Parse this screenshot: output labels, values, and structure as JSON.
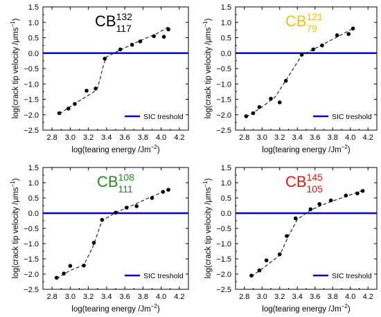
{
  "chart_data": [
    {
      "type": "scatter",
      "title_base": "CB",
      "title_sup": "132",
      "title_sub": "117",
      "title_color": "#000000",
      "xlabel": "log(tearing energy /Jm",
      "xlabel_exp": "−2",
      "xlabel_close": ")",
      "ylabel": "log(crack tip velocity /μms",
      "ylabel_exp": "−1",
      "ylabel_close": ")",
      "xlim": [
        2.7,
        4.3
      ],
      "ylim": [
        -2.5,
        1.5
      ],
      "xticks": [
        "2.8",
        "3.0",
        "3.2",
        "3.4",
        "3.6",
        "3.8",
        "4.0",
        "4.2"
      ],
      "yticks": [
        "−2.5",
        "−2.0",
        "−1.5",
        "−1.0",
        "−0.5",
        "0.0",
        "0.5",
        "1.0",
        "1.5"
      ],
      "legend": {
        "label": "SIC treshold",
        "position": "bottom-right"
      },
      "threshold": {
        "y": 0.0,
        "color": "#0000dd"
      },
      "points": [
        [
          2.88,
          -1.95
        ],
        [
          2.98,
          -1.8
        ],
        [
          3.05,
          -1.65
        ],
        [
          3.18,
          -1.22
        ],
        [
          3.28,
          -1.15
        ],
        [
          3.38,
          -0.18
        ],
        [
          3.55,
          0.12
        ],
        [
          3.68,
          0.27
        ],
        [
          3.77,
          0.38
        ],
        [
          3.92,
          0.55
        ],
        [
          4.03,
          0.53
        ],
        [
          4.08,
          0.77
        ]
      ],
      "fit": [
        [
          2.88,
          -1.97
        ],
        [
          3.1,
          -1.55
        ],
        [
          3.25,
          -1.28
        ],
        [
          3.3,
          -1.15
        ],
        [
          3.37,
          -0.35
        ],
        [
          3.4,
          -0.12
        ],
        [
          3.55,
          0.1
        ],
        [
          3.75,
          0.38
        ],
        [
          3.95,
          0.63
        ],
        [
          4.08,
          0.85
        ]
      ]
    },
    {
      "type": "scatter",
      "title_base": "CB",
      "title_sup": "121",
      "title_sub": "79",
      "title_color": "#f2c400",
      "xlabel": "log(tearing energy /Jm",
      "xlabel_exp": "−2",
      "xlabel_close": ")",
      "ylabel": "log(crack tip velocity /μms",
      "ylabel_exp": "−1",
      "ylabel_close": ")",
      "xlim": [
        2.7,
        4.3
      ],
      "ylim": [
        -2.5,
        1.5
      ],
      "xticks": [
        "2.8",
        "3.0",
        "3.2",
        "3.4",
        "3.6",
        "3.8",
        "4.0",
        "4.2"
      ],
      "yticks": [
        "−2.5",
        "−2.0",
        "−1.5",
        "−1.0",
        "−0.5",
        "0.0",
        "0.5",
        "1.0",
        "1.5"
      ],
      "legend": {
        "label": "SIC treshold",
        "position": "bottom-right"
      },
      "threshold": {
        "y": 0.0,
        "color": "#0000dd"
      },
      "points": [
        [
          2.82,
          -2.05
        ],
        [
          2.9,
          -1.95
        ],
        [
          2.97,
          -1.75
        ],
        [
          3.1,
          -1.48
        ],
        [
          3.2,
          -1.6
        ],
        [
          3.27,
          -0.9
        ],
        [
          3.45,
          -0.05
        ],
        [
          3.58,
          0.12
        ],
        [
          3.68,
          0.25
        ],
        [
          3.85,
          0.58
        ],
        [
          3.98,
          0.62
        ],
        [
          4.03,
          0.8
        ]
      ],
      "fit": [
        [
          2.82,
          -2.08
        ],
        [
          3.0,
          -1.75
        ],
        [
          3.15,
          -1.42
        ],
        [
          3.3,
          -0.75
        ],
        [
          3.45,
          -0.07
        ],
        [
          3.6,
          0.15
        ],
        [
          3.8,
          0.45
        ],
        [
          4.03,
          0.8
        ]
      ]
    },
    {
      "type": "scatter",
      "title_base": "CB",
      "title_sup": "108",
      "title_sub": "111",
      "title_color": "#228b22",
      "xlabel": "log(tearing energy /Jm",
      "xlabel_exp": "−2",
      "xlabel_close": ")",
      "ylabel": "log(crack tip velocity /μms",
      "ylabel_exp": "−1",
      "ylabel_close": ")",
      "xlim": [
        2.7,
        4.3
      ],
      "ylim": [
        -2.5,
        1.5
      ],
      "xticks": [
        "2.8",
        "3.0",
        "3.2",
        "3.4",
        "3.6",
        "3.8",
        "4.0",
        "4.2"
      ],
      "yticks": [
        "−2.5",
        "−2.0",
        "−1.5",
        "−1.0",
        "−0.5",
        "0.0",
        "0.5",
        "1.0",
        "1.5"
      ],
      "legend": {
        "label": "SIC treshold",
        "position": "bottom-right"
      },
      "threshold": {
        "y": 0.0,
        "color": "#0000dd"
      },
      "points": [
        [
          2.85,
          -2.12
        ],
        [
          2.93,
          -1.98
        ],
        [
          3.0,
          -1.73
        ],
        [
          3.15,
          -1.72
        ],
        [
          3.26,
          -0.97
        ],
        [
          3.35,
          -0.22
        ],
        [
          3.5,
          0.02
        ],
        [
          3.62,
          0.18
        ],
        [
          3.73,
          0.23
        ],
        [
          3.9,
          0.5
        ],
        [
          4.02,
          0.7
        ],
        [
          4.08,
          0.77
        ]
      ],
      "fit": [
        [
          2.85,
          -2.15
        ],
        [
          3.0,
          -1.88
        ],
        [
          3.15,
          -1.7
        ],
        [
          3.25,
          -1.1
        ],
        [
          3.35,
          -0.25
        ],
        [
          3.5,
          0.02
        ],
        [
          3.7,
          0.28
        ],
        [
          3.9,
          0.55
        ],
        [
          4.08,
          0.77
        ]
      ]
    },
    {
      "type": "scatter",
      "title_base": "CB",
      "title_sup": "145",
      "title_sub": "105",
      "title_color": "#e8140f",
      "xlabel": "log(tearing energy /Jm",
      "xlabel_exp": "−2",
      "xlabel_close": ")",
      "ylabel": "log(crack tip velocity /μms",
      "ylabel_exp": "−1",
      "ylabel_close": ")",
      "xlim": [
        2.7,
        4.3
      ],
      "ylim": [
        -2.5,
        1.5
      ],
      "xticks": [
        "2.8",
        "3.0",
        "3.2",
        "3.4",
        "3.6",
        "3.8",
        "4.0",
        "4.2"
      ],
      "yticks": [
        "−2.5",
        "−2.0",
        "−1.5",
        "−1.0",
        "−0.5",
        "0.0",
        "0.5",
        "1.0",
        "1.5"
      ],
      "legend": {
        "label": "SIC treshold",
        "position": "bottom-right"
      },
      "threshold": {
        "y": 0.0,
        "color": "#0000dd"
      },
      "points": [
        [
          2.88,
          -2.05
        ],
        [
          2.97,
          -1.88
        ],
        [
          3.05,
          -1.55
        ],
        [
          3.2,
          -1.35
        ],
        [
          3.28,
          -0.75
        ],
        [
          3.38,
          -0.17
        ],
        [
          3.55,
          0.13
        ],
        [
          3.65,
          0.3
        ],
        [
          3.78,
          0.42
        ],
        [
          3.95,
          0.58
        ],
        [
          4.08,
          0.65
        ],
        [
          4.14,
          0.73
        ]
      ],
      "fit": [
        [
          2.88,
          -2.08
        ],
        [
          3.05,
          -1.72
        ],
        [
          3.2,
          -1.38
        ],
        [
          3.3,
          -0.75
        ],
        [
          3.4,
          -0.2
        ],
        [
          3.55,
          0.1
        ],
        [
          3.75,
          0.35
        ],
        [
          3.95,
          0.55
        ],
        [
          4.14,
          0.75
        ]
      ]
    }
  ]
}
